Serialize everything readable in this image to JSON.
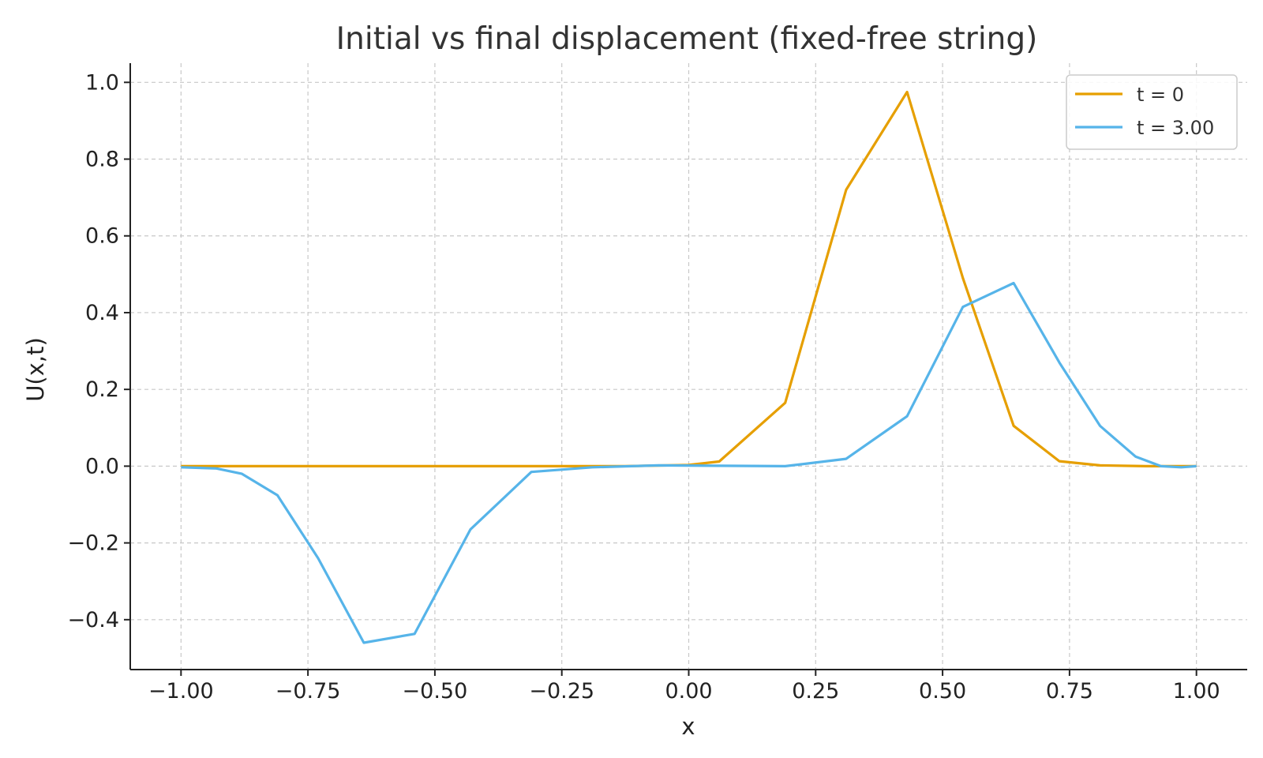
{
  "chart_data": {
    "type": "line",
    "title": "Initial vs final displacement (fixed-free string)",
    "xlabel": "x",
    "ylabel": "U(x,t)",
    "xlim": [
      -1.1,
      1.1
    ],
    "ylim": [
      -0.53,
      1.05
    ],
    "xticks": [
      -1.0,
      -0.75,
      -0.5,
      -0.25,
      0.0,
      0.25,
      0.5,
      0.75,
      1.0
    ],
    "xtick_labels": [
      "−1.00",
      "−0.75",
      "−0.50",
      "−0.25",
      "0.00",
      "0.25",
      "0.50",
      "0.75",
      "1.00"
    ],
    "yticks": [
      -0.4,
      -0.2,
      0.0,
      0.2,
      0.4,
      0.6,
      0.8,
      1.0
    ],
    "ytick_labels": [
      "−0.4",
      "−0.2",
      "0.0",
      "0.2",
      "0.4",
      "0.6",
      "0.8",
      "1.0"
    ],
    "grid": true,
    "legend_position": "top-right",
    "series": [
      {
        "name": "t = 0",
        "color": "#E69F00",
        "x": [
          -1.0,
          -0.875,
          -0.75,
          -0.625,
          -0.5,
          -0.375,
          -0.25,
          -0.125,
          0.0,
          0.06,
          0.19,
          0.31,
          0.43,
          0.54,
          0.64,
          0.73,
          0.81,
          0.9,
          1.0
        ],
        "y": [
          0.0,
          0.0,
          0.0,
          0.0,
          0.0,
          0.0,
          0.0,
          0.0,
          0.003,
          0.012,
          0.165,
          0.72,
          0.975,
          0.49,
          0.105,
          0.013,
          0.002,
          0.0,
          0.0
        ]
      },
      {
        "name": "t = 3.00",
        "color": "#56B4E9",
        "x": [
          -1.0,
          -0.93,
          -0.88,
          -0.81,
          -0.73,
          -0.64,
          -0.54,
          -0.43,
          -0.31,
          -0.19,
          -0.06,
          0.06,
          0.19,
          0.31,
          0.43,
          0.54,
          0.64,
          0.73,
          0.81,
          0.88,
          0.93,
          0.97,
          1.0
        ],
        "y": [
          -0.003,
          -0.006,
          -0.02,
          -0.076,
          -0.24,
          -0.46,
          -0.437,
          -0.165,
          -0.015,
          -0.003,
          0.002,
          0.001,
          0.0,
          0.019,
          0.13,
          0.415,
          0.477,
          0.27,
          0.105,
          0.025,
          0.0,
          -0.003,
          0.0
        ]
      }
    ]
  }
}
